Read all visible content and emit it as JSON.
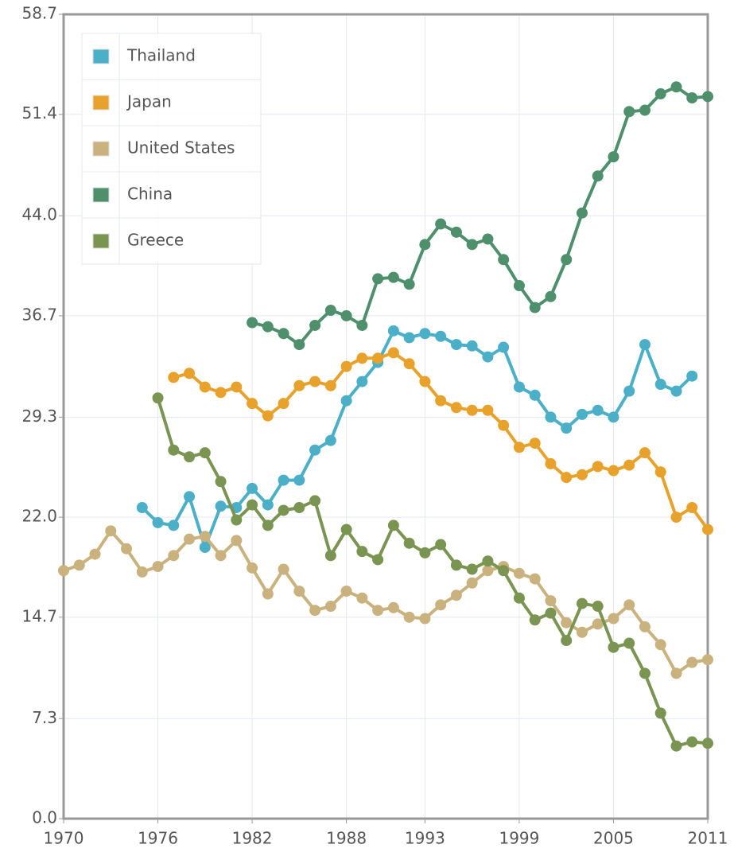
{
  "chart_data": {
    "type": "line",
    "x": [
      1970,
      1971,
      1972,
      1973,
      1974,
      1975,
      1976,
      1977,
      1978,
      1979,
      1980,
      1981,
      1982,
      1983,
      1984,
      1985,
      1986,
      1987,
      1988,
      1989,
      1990,
      1991,
      1992,
      1993,
      1994,
      1995,
      1996,
      1997,
      1998,
      1999,
      2000,
      2001,
      2002,
      2003,
      2004,
      2005,
      2006,
      2007,
      2008,
      2009,
      2010,
      2011
    ],
    "series": [
      {
        "name": "Thailand",
        "color": "#4bafc8",
        "values": [
          null,
          null,
          null,
          null,
          null,
          22.7,
          21.6,
          21.4,
          23.5,
          19.8,
          22.8,
          22.7,
          24.1,
          22.9,
          24.7,
          24.7,
          26.9,
          27.6,
          30.5,
          31.9,
          33.3,
          35.6,
          35.1,
          35.4,
          35.2,
          34.6,
          34.5,
          33.7,
          34.4,
          31.5,
          30.9,
          29.3,
          28.5,
          29.5,
          29.8,
          29.3,
          31.2,
          34.6,
          31.7,
          31.2,
          32.3,
          null
        ]
      },
      {
        "name": "Japan",
        "color": "#e8a22c",
        "values": [
          null,
          null,
          null,
          null,
          null,
          null,
          null,
          32.2,
          32.5,
          31.5,
          31.1,
          31.5,
          30.3,
          29.4,
          30.3,
          31.6,
          31.9,
          31.6,
          33.0,
          33.6,
          33.6,
          34.0,
          33.2,
          31.9,
          30.5,
          30.0,
          29.8,
          29.8,
          28.7,
          27.1,
          27.4,
          25.9,
          24.9,
          25.1,
          25.7,
          25.4,
          25.8,
          26.7,
          25.3,
          22.0,
          22.7,
          21.1
        ]
      },
      {
        "name": "United States",
        "color": "#c9b27d",
        "values": [
          18.1,
          18.5,
          19.3,
          21.0,
          19.7,
          18.0,
          18.4,
          19.2,
          20.4,
          20.6,
          19.2,
          20.3,
          18.3,
          16.4,
          18.2,
          16.6,
          15.2,
          15.5,
          16.6,
          16.1,
          15.2,
          15.4,
          14.7,
          14.6,
          15.6,
          16.3,
          17.2,
          18.1,
          18.4,
          17.9,
          17.5,
          15.9,
          14.3,
          13.6,
          14.2,
          14.6,
          15.6,
          14.0,
          12.7,
          10.6,
          11.4,
          11.6
        ]
      },
      {
        "name": "China",
        "color": "#4e8f6c",
        "values": [
          null,
          null,
          null,
          null,
          null,
          null,
          null,
          null,
          null,
          null,
          null,
          null,
          36.2,
          35.9,
          35.4,
          34.6,
          36.0,
          37.1,
          36.7,
          36.0,
          39.4,
          39.5,
          39.0,
          41.9,
          43.4,
          42.8,
          41.9,
          42.3,
          40.8,
          38.9,
          37.3,
          38.1,
          40.8,
          44.2,
          46.9,
          48.3,
          51.6,
          51.7,
          52.9,
          53.4,
          52.6,
          52.7
        ]
      },
      {
        "name": "Greece",
        "color": "#7a9451",
        "values": [
          null,
          null,
          null,
          null,
          null,
          null,
          30.7,
          26.9,
          26.4,
          26.7,
          24.6,
          21.8,
          22.9,
          21.4,
          22.5,
          22.7,
          23.2,
          19.2,
          21.1,
          19.5,
          18.9,
          21.4,
          20.1,
          19.4,
          20.0,
          18.5,
          18.2,
          18.8,
          18.1,
          16.1,
          14.5,
          15.0,
          13.0,
          15.7,
          15.5,
          12.5,
          12.8,
          10.6,
          7.7,
          5.3,
          5.6,
          5.5
        ]
      }
    ],
    "xlim": [
      1970,
      2011
    ],
    "xticks": [
      1970,
      1976,
      1982,
      1988,
      1993,
      1999,
      2005,
      2011
    ],
    "ylim": [
      0,
      58.7
    ],
    "yticks": [
      {
        "value": 0,
        "label": "0.0"
      },
      7.3,
      14.7,
      {
        "value": 22,
        "label": "22.0"
      },
      29.3,
      36.7,
      {
        "value": 44,
        "label": "44.0"
      },
      51.4,
      58.7
    ],
    "grid": true,
    "legend": "top-left"
  }
}
